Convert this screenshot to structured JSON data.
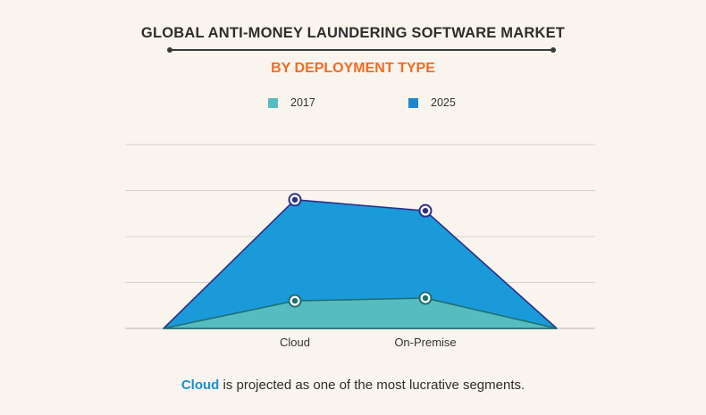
{
  "header": {
    "title": "GLOBAL ANTI-MONEY LAUNDERING SOFTWARE MARKET",
    "subtitle": "BY DEPLOYMENT TYPE"
  },
  "footer": {
    "highlight": "Cloud",
    "text": " is projected as one of the most lucrative segments."
  },
  "colors": {
    "series_2017": "#56bcc0",
    "series_2025": "#1a9ad9",
    "line_2017": "#1e6f70",
    "line_2025": "#2b2f86",
    "accent": "#f36b21"
  },
  "chart_data": {
    "type": "area",
    "categories": [
      "Cloud",
      "On-Premise"
    ],
    "series": [
      {
        "name": "2017",
        "values": [
          30,
          33
        ]
      },
      {
        "name": "2025",
        "values": [
          140,
          128
        ]
      }
    ],
    "ylim": [
      0,
      200
    ],
    "grid": true,
    "legend": "top-center"
  }
}
